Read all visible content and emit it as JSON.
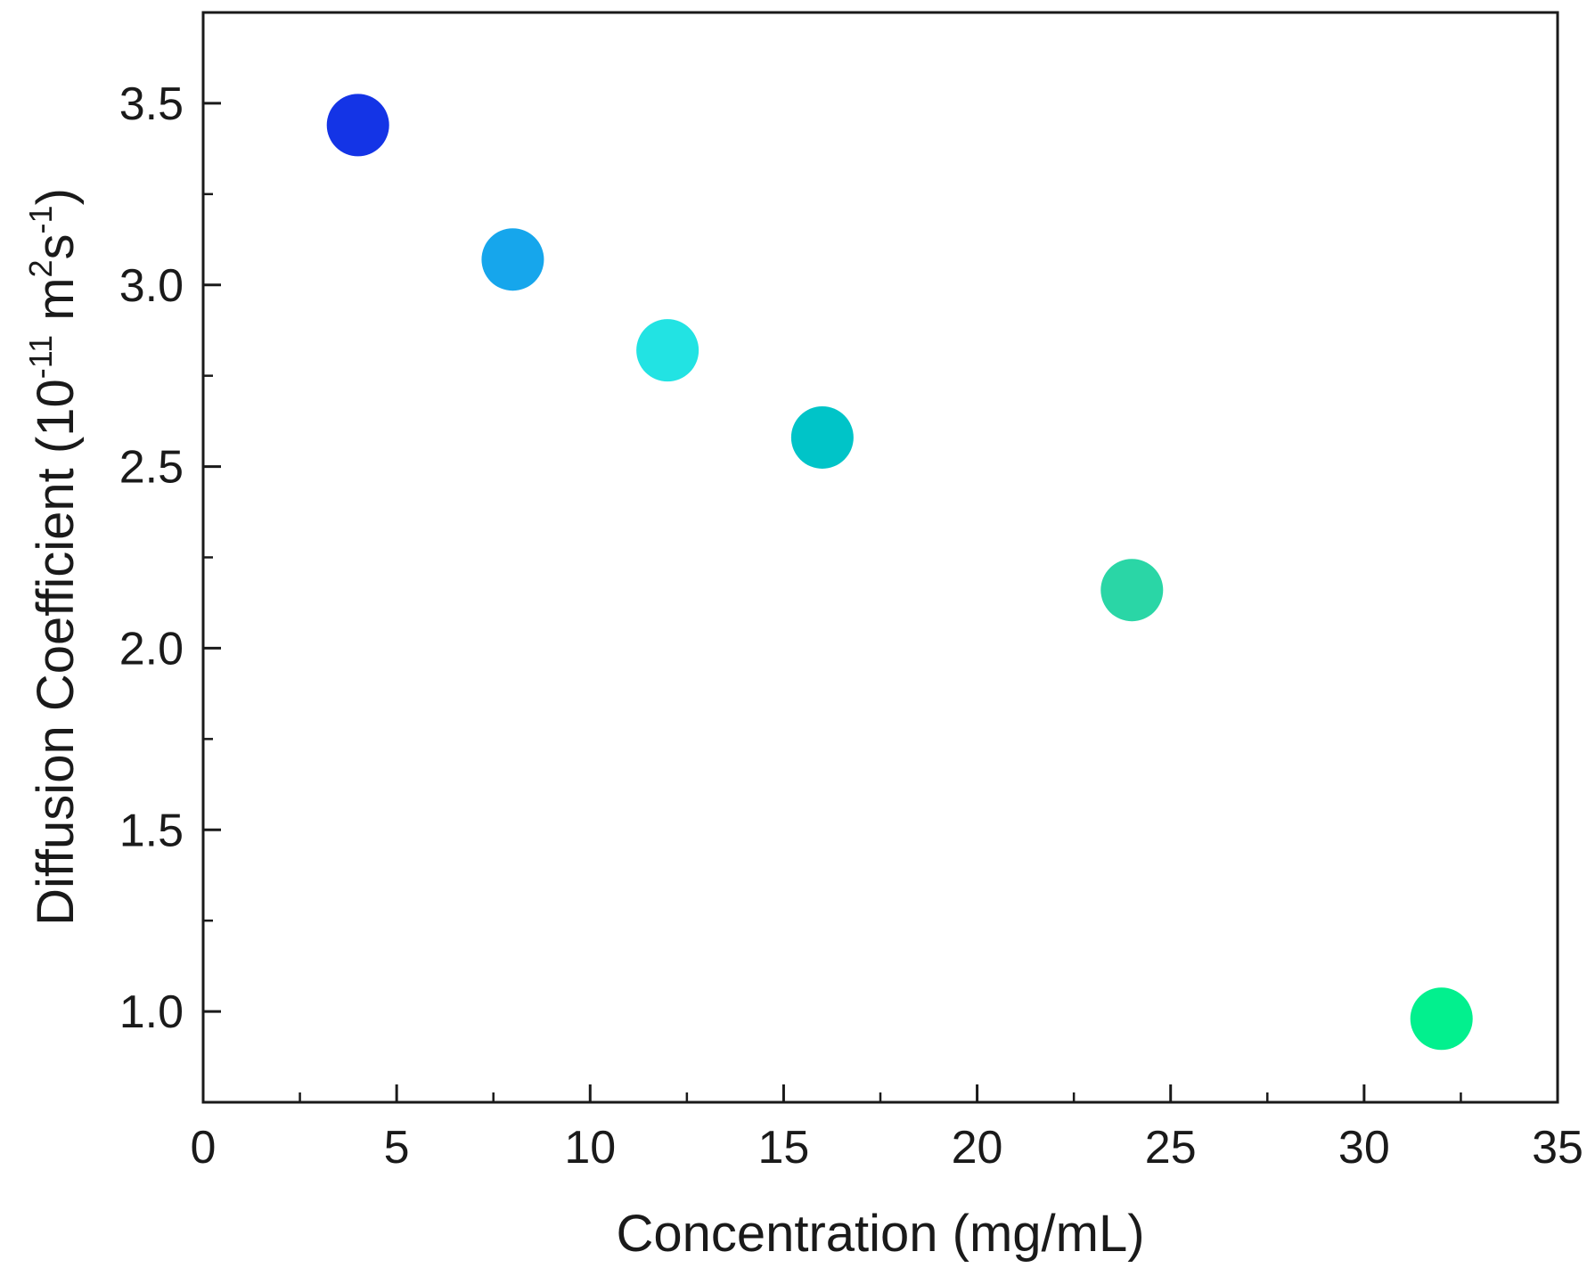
{
  "chart_data": {
    "type": "scatter",
    "title": "",
    "xlabel": "Concentration (mg/mL)",
    "ylabel": {
      "main": "Diffusion Coefficient (10",
      "exp1": "-11",
      "unit_m": " m",
      "exp2": "2",
      "unit_s": "s",
      "exp3": "-1",
      "close": ")"
    },
    "xlim": [
      0,
      35
    ],
    "ylim": [
      0.75,
      3.75
    ],
    "x_major_ticks": [
      0,
      5,
      10,
      15,
      20,
      25,
      30,
      35
    ],
    "x_minor_ticks": [
      2.5,
      7.5,
      12.5,
      17.5,
      22.5,
      27.5,
      32.5
    ],
    "y_major_ticks": [
      1.0,
      1.5,
      2.0,
      2.5,
      3.0,
      3.5
    ],
    "y_minor_ticks": [
      0.75,
      1.25,
      1.75,
      2.25,
      2.75,
      3.25,
      3.75
    ],
    "x_tick_labels": [
      "0",
      "5",
      "10",
      "15",
      "20",
      "25",
      "30",
      "35"
    ],
    "y_tick_labels": [
      "1.0",
      "1.5",
      "2.0",
      "2.5",
      "3.0",
      "3.5"
    ],
    "grid": false,
    "legend": "none",
    "points": [
      {
        "x": 4,
        "y": 3.44,
        "color": "#1434e6"
      },
      {
        "x": 8,
        "y": 3.07,
        "color": "#16a6ec"
      },
      {
        "x": 12,
        "y": 2.82,
        "color": "#22e3e3"
      },
      {
        "x": 16,
        "y": 2.58,
        "color": "#00c4c8"
      },
      {
        "x": 24,
        "y": 2.16,
        "color": "#2ad6a6"
      },
      {
        "x": 32,
        "y": 0.98,
        "color": "#02f08e"
      }
    ]
  }
}
